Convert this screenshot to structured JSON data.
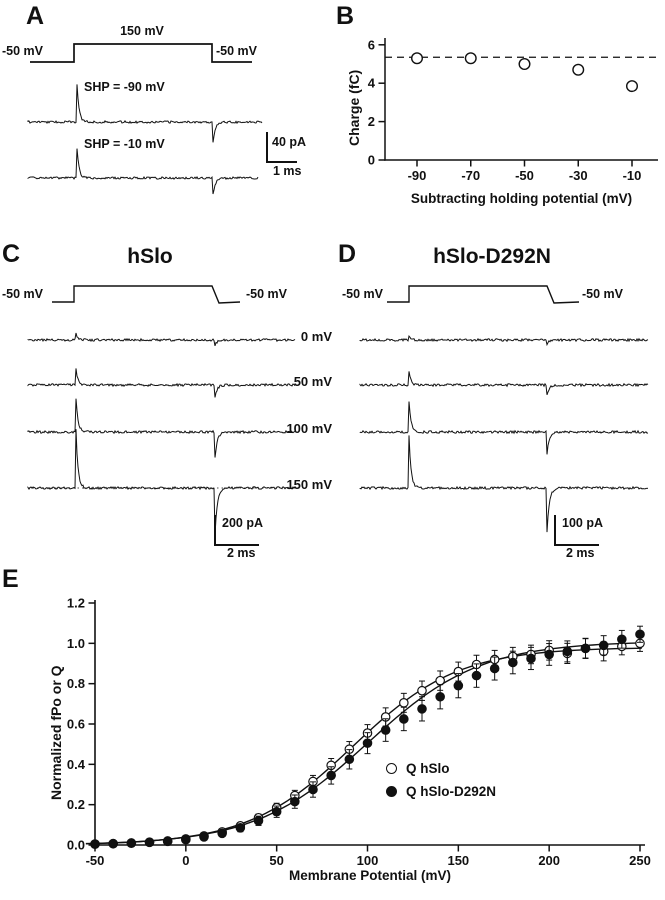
{
  "figure": {
    "background": "#ffffff",
    "ink": "#111111",
    "panel_A": {
      "letter": "A",
      "protocol": {
        "left": "-50 mV",
        "top": "150 mV",
        "right": "-50 mV"
      },
      "trace_labels": [
        "SHP =  -90 mV",
        "SHP =  -10 mV"
      ],
      "scalebar": {
        "vertical": "40 pA",
        "horizontal": "1 ms"
      }
    },
    "panel_B": {
      "letter": "B"
    },
    "panel_C": {
      "letter": "C",
      "title": "hSlo",
      "protocol": {
        "left": "-50 mV",
        "right": "-50 mV"
      },
      "scalebar": {
        "vertical": "200 pA",
        "horizontal": "2 ms"
      }
    },
    "panel_D": {
      "letter": "D",
      "title": "hSlo-D292N",
      "protocol": {
        "left": "-50 mV",
        "right": "-50 mV"
      },
      "scalebar": {
        "vertical": "100 pA",
        "horizontal": "2 ms"
      }
    },
    "voltage_labels": [
      "0 mV",
      "50 mV",
      "100 mV",
      "150 mV"
    ],
    "panel_E": {
      "letter": "E",
      "legend": [
        {
          "marker": "open-circle",
          "label": "Q  hSlo"
        },
        {
          "marker": "filled-circle",
          "label": "Q  hSlo-D292N"
        }
      ]
    }
  },
  "chart_data": [
    {
      "id": "panel-B",
      "type": "scatter",
      "title": "",
      "xlabel": "Subtracting holding potential (mV)",
      "ylabel": "Charge (fC)",
      "x": [
        -90,
        -70,
        -50,
        -30,
        -10
      ],
      "y": [
        5.3,
        5.3,
        5.0,
        4.7,
        3.85
      ],
      "marker": "open-circle",
      "dashed_reference_y": 5.35,
      "xlim": [
        -100,
        -2
      ],
      "ylim": [
        0,
        6
      ],
      "yticks": [
        0,
        2,
        4,
        6
      ],
      "ytick_labels": [
        "0",
        "2",
        "4",
        "6"
      ],
      "xticks": [
        -90,
        -70,
        -50,
        -30,
        -10
      ],
      "xtick_labels": [
        "-90",
        "-70",
        "-50",
        "-30",
        "-10"
      ],
      "grid": false,
      "legend_position": "none"
    },
    {
      "id": "panel-E",
      "type": "scatter",
      "title": "",
      "xlabel": "Membrane Potential (mV)",
      "ylabel": "Normalized fPo or Q",
      "xlim": [
        -50,
        250
      ],
      "ylim": [
        0,
        1.2
      ],
      "xticks": [
        -50,
        0,
        50,
        100,
        150,
        200,
        250
      ],
      "xtick_labels": [
        "-50",
        "0",
        "50",
        "100",
        "150",
        "200",
        "250"
      ],
      "yticks": [
        0,
        0.2,
        0.4,
        0.6,
        0.8,
        1.0,
        1.2
      ],
      "ytick_labels": [
        "0.0",
        "0.2",
        "0.4",
        "0.6",
        "0.8",
        "1.0",
        "1.2"
      ],
      "x": [
        -50,
        -40,
        -30,
        -20,
        -10,
        0,
        10,
        20,
        30,
        40,
        50,
        60,
        70,
        80,
        90,
        100,
        110,
        120,
        130,
        140,
        150,
        160,
        170,
        180,
        190,
        200,
        210,
        220,
        230,
        240,
        250
      ],
      "series": [
        {
          "name": "Q  hSlo",
          "marker": "open-circle",
          "values": [
            0.005,
            0.007,
            0.01,
            0.014,
            0.02,
            0.03,
            0.045,
            0.065,
            0.095,
            0.135,
            0.185,
            0.245,
            0.315,
            0.395,
            0.475,
            0.555,
            0.635,
            0.705,
            0.765,
            0.815,
            0.86,
            0.895,
            0.92,
            0.935,
            0.945,
            0.965,
            0.95,
            0.975,
            0.96,
            0.985,
            1.0
          ],
          "errors": [
            0.004,
            0.004,
            0.005,
            0.005,
            0.006,
            0.008,
            0.01,
            0.012,
            0.015,
            0.018,
            0.022,
            0.026,
            0.03,
            0.034,
            0.038,
            0.042,
            0.045,
            0.047,
            0.048,
            0.048,
            0.047,
            0.046,
            0.045,
            0.045,
            0.046,
            0.048,
            0.05,
            0.048,
            0.047,
            0.042,
            0.04
          ],
          "fit": {
            "type": "boltzmann",
            "vhalf": 92,
            "k": 29,
            "max": 0.98
          }
        },
        {
          "name": "Q  hSlo-D292N",
          "marker": "filled-circle",
          "values": [
            0.004,
            0.006,
            0.009,
            0.013,
            0.018,
            0.026,
            0.04,
            0.058,
            0.085,
            0.12,
            0.165,
            0.215,
            0.275,
            0.345,
            0.425,
            0.505,
            0.57,
            0.625,
            0.675,
            0.735,
            0.79,
            0.84,
            0.875,
            0.905,
            0.925,
            0.945,
            0.96,
            0.975,
            0.99,
            1.02,
            1.045
          ],
          "errors": [
            0.004,
            0.004,
            0.005,
            0.006,
            0.007,
            0.009,
            0.012,
            0.015,
            0.019,
            0.023,
            0.028,
            0.033,
            0.038,
            0.043,
            0.048,
            0.052,
            0.056,
            0.058,
            0.06,
            0.06,
            0.06,
            0.058,
            0.057,
            0.056,
            0.055,
            0.054,
            0.052,
            0.05,
            0.048,
            0.044,
            0.04
          ],
          "fit": {
            "type": "boltzmann",
            "vhalf": 100,
            "k": 31,
            "max": 1.01
          }
        }
      ],
      "legend_position": "right-middle",
      "grid": false
    }
  ]
}
